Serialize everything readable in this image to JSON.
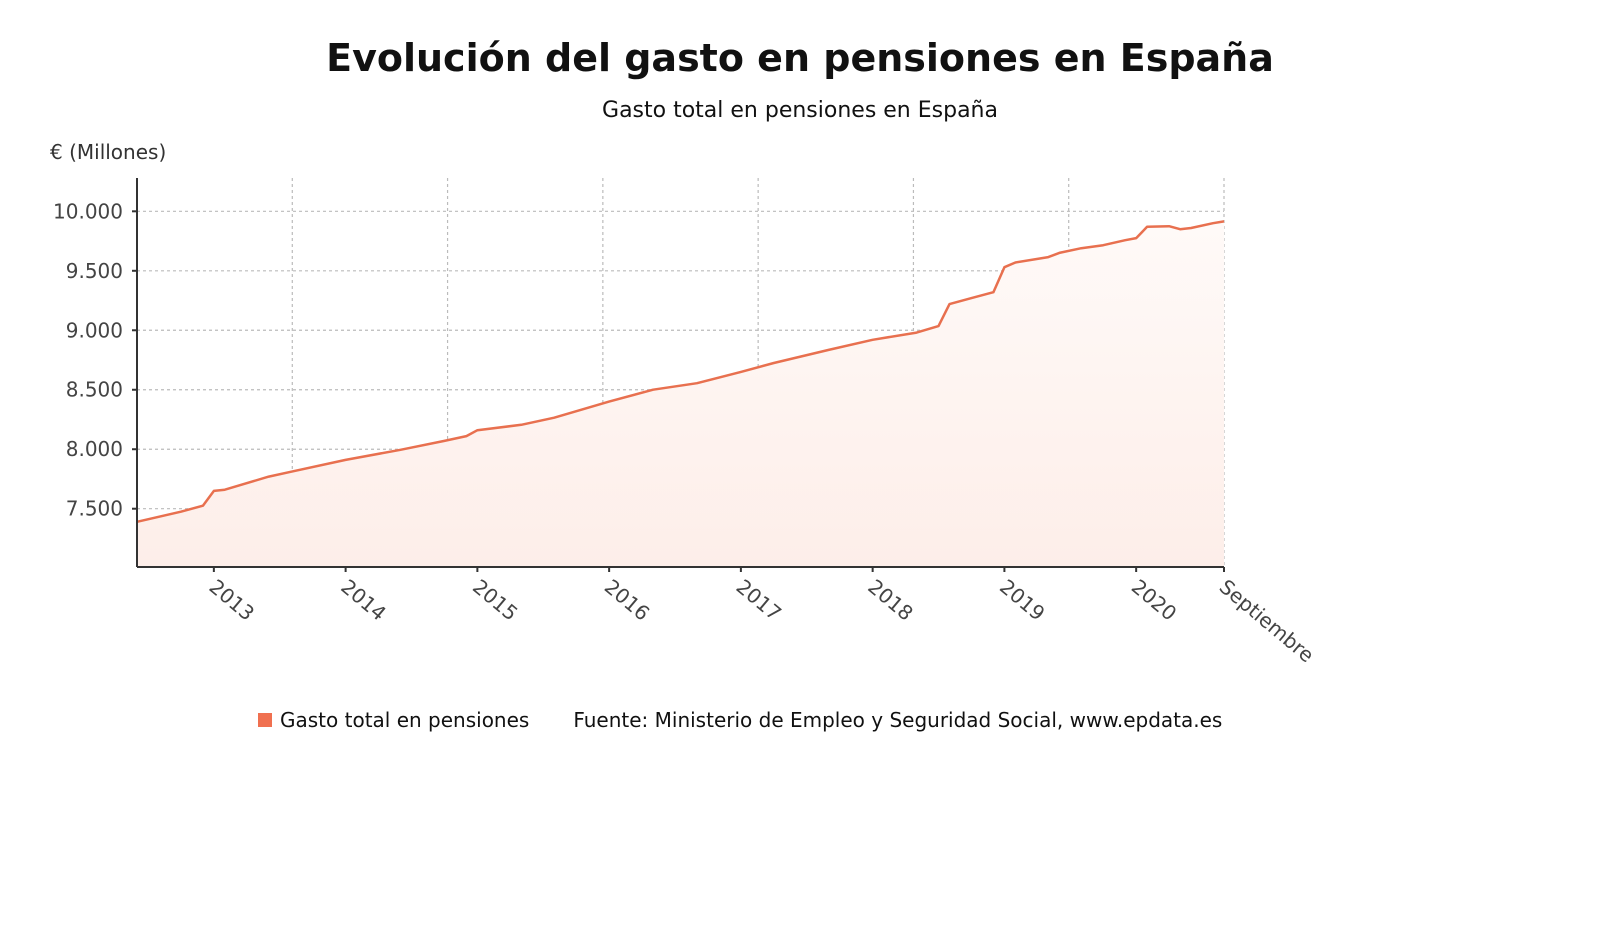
{
  "chart_data": {
    "type": "area",
    "title": "Evolución del gasto en pensiones en España",
    "subtitle": "Gasto total en pensiones en España",
    "ylabel": "€ (Millones)",
    "xlabel": "",
    "ylim": [
      7010,
      10280
    ],
    "xlim": [
      "2012-06",
      "2020-09"
    ],
    "yticks": [
      7500,
      8000,
      8500,
      9000,
      9500,
      10000
    ],
    "ytick_labels": [
      "7.500",
      "8.000",
      "8.500",
      "9.000",
      "9.500",
      "10.000"
    ],
    "xticks": [
      "2013-01",
      "2014-01",
      "2015-01",
      "2016-01",
      "2017-01",
      "2018-01",
      "2019-01",
      "2020-01",
      "2020-09"
    ],
    "xtick_labels": [
      "2013",
      "2014",
      "2015",
      "2016",
      "2017",
      "2018",
      "2019",
      "2020",
      "Septiembre"
    ],
    "grid": true,
    "legend_placement": "bottom",
    "series": [
      {
        "name": "Gasto total en pensiones",
        "color": "#e8704f",
        "fill": "#fdeee9",
        "x": [
          "2012-06",
          "2012-10",
          "2012-12",
          "2013-01",
          "2013-02",
          "2013-06",
          "2013-08",
          "2014-01",
          "2014-06",
          "2014-10",
          "2014-12",
          "2015-01",
          "2015-05",
          "2015-08",
          "2016-01",
          "2016-05",
          "2016-09",
          "2017-01",
          "2017-04",
          "2017-09",
          "2018-01",
          "2018-05",
          "2018-07",
          "2018-08",
          "2018-10",
          "2018-12",
          "2019-01",
          "2019-02",
          "2019-05",
          "2019-06",
          "2019-08",
          "2019-10",
          "2019-12",
          "2020-01",
          "2020-02",
          "2020-04",
          "2020-05",
          "2020-06",
          "2020-08",
          "2020-09"
        ],
        "values": [
          7390,
          7475,
          7525,
          7650,
          7660,
          7770,
          7810,
          7910,
          7995,
          8070,
          8110,
          8160,
          8205,
          8265,
          8400,
          8500,
          8555,
          8650,
          8725,
          8835,
          8920,
          8980,
          9035,
          9220,
          9270,
          9320,
          9530,
          9570,
          9615,
          9650,
          9690,
          9715,
          9757,
          9775,
          9870,
          9875,
          9850,
          9860,
          9900,
          9915
        ]
      }
    ],
    "source": "Fuente: Ministerio de Empleo y Seguridad Social, www.epdata.es",
    "legend_swatch_color": "#f07050"
  }
}
